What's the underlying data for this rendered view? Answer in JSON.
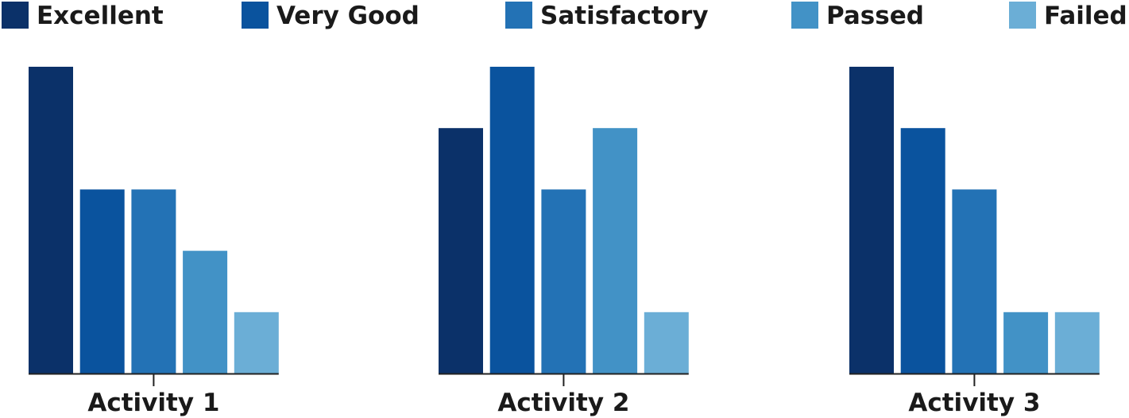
{
  "chart_data": {
    "type": "bar",
    "title": "",
    "xlabel": "",
    "ylabel": "",
    "categories": [
      "Activity 1",
      "Activity 2",
      "Activity 3"
    ],
    "series": [
      {
        "name": "Excellent",
        "color": "#0b3169",
        "values": [
          5,
          4,
          5
        ]
      },
      {
        "name": "Very Good",
        "color": "#0a539e",
        "values": [
          3,
          5,
          4
        ]
      },
      {
        "name": "Satisfactory",
        "color": "#2372b5",
        "values": [
          3,
          3,
          3
        ]
      },
      {
        "name": "Passed",
        "color": "#4292c6",
        "values": [
          2,
          4,
          1
        ]
      },
      {
        "name": "Failed",
        "color": "#6baed6",
        "values": [
          1,
          1,
          1
        ]
      }
    ],
    "ylim": [
      0,
      5
    ],
    "grid": false,
    "legend": "top",
    "y_axis_shown": false
  }
}
